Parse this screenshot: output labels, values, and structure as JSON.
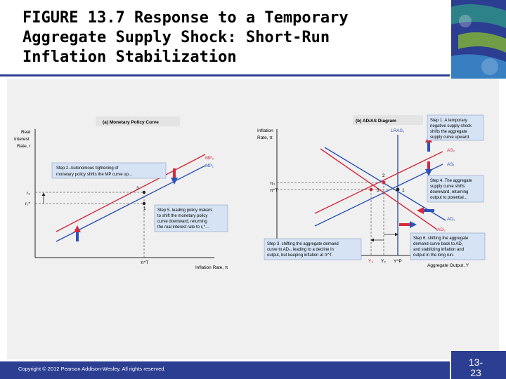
{
  "slide": {
    "title": "FIGURE 13.7  Response to a Temporary\nAggregate Supply Shock:  Short-Run\nInflation Stabilization",
    "copyright": "Copyright © 2012 Pearson Addison-Wesley. All rights reserved.",
    "page_number": "13-\n23"
  },
  "colors": {
    "accent": "#2c3e91",
    "red": "#d42a3c",
    "blue": "#2a52b8",
    "callout": "#d6e3f5",
    "teal": "#2e8a8a",
    "green": "#7fae3a"
  },
  "panel_a": {
    "title": "(a) Monetary Policy Curve",
    "y_axis": [
      "Real",
      "Interest",
      "Rate, r"
    ],
    "x_axis": "Inflation Rate, π",
    "curve_mp2": "MP₂",
    "curve_mp1": "MP₁",
    "point_3": "3",
    "point_1": "1",
    "tick_r3": "r₃",
    "tick_r1": "r₁*",
    "tick_pi": "π^T",
    "step2": [
      "Step 2. Autonomous tightening of",
      "monetary policy shifts the MP curve up…"
    ],
    "step5": [
      "Step 5. leading policy makers",
      "to shift the monetary policy",
      "curve downward, returning",
      "the real interest rate to r₁*…"
    ]
  },
  "panel_b": {
    "title": "(b) AD/AS Diagram",
    "y_axis": [
      "Inflation",
      "Rate, π"
    ],
    "x_axis": "Aggregate Output, Y",
    "lras": "LRAS₁",
    "as2": "AS₂",
    "as1": "AS₁",
    "ad1": "AD₁",
    "ad3": "AD₃",
    "point_1": "1",
    "point_2": "2",
    "point_3": "3",
    "tick_pi3": "π₃",
    "tick_piT": "π^T",
    "tick_y3": "Y₃",
    "tick_y2": "Y₂",
    "tick_yp": "Y^P",
    "step1": [
      "Step 1. A temporary",
      "negative supply shock",
      "shifts the aggregate",
      "supply curve upward."
    ],
    "step4": [
      "Step 4. The aggregate",
      "supply curve shifts",
      "downward, returning",
      "output to potential…"
    ],
    "step3": [
      "Step 3. shifting the aggregate demand",
      "curve to AD₃, leading to a decline in",
      "output, but keeping inflation at π^T."
    ],
    "step6": [
      "Step 6. shifting the aggregate",
      "demand curve back to AD₁",
      "and stabilizing inflation and",
      "output in the long run."
    ]
  }
}
